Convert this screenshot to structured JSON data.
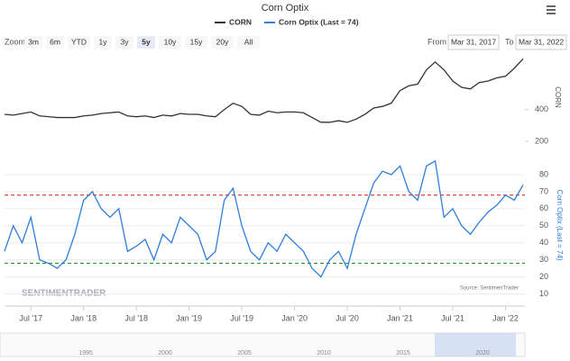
{
  "chart_data": {
    "type": "line",
    "title": "Corn Optix",
    "zoom_label": "Zoom",
    "zoom_buttons": [
      "3m",
      "6m",
      "YTD",
      "1y",
      "3y",
      "5y",
      "10y",
      "15y",
      "20y",
      "All"
    ],
    "zoom_selected": "5y",
    "from_label": "From",
    "from_date": "Mar 31, 2017",
    "to_label": "To",
    "to_date": "Mar 31, 2022",
    "source": "Source: SentimenTrader",
    "watermark": "SENTIMENTRADER",
    "categories": [
      null,
      null,
      null,
      "Jul '17",
      null,
      null,
      null,
      null,
      null,
      "Jan '18",
      null,
      null,
      null,
      null,
      null,
      "Jul '18",
      null,
      null,
      null,
      null,
      null,
      "Jan '19",
      null,
      null,
      null,
      null,
      null,
      "Jul '19",
      null,
      null,
      null,
      null,
      null,
      "Jan '20",
      null,
      null,
      null,
      null,
      null,
      "Jul '20",
      null,
      null,
      null,
      null,
      null,
      "Jan '21",
      null,
      null,
      null,
      null,
      null,
      "Jul '21",
      null,
      null,
      null,
      null,
      null,
      "Jan '22",
      null,
      null
    ],
    "series": [
      {
        "name": "CORN",
        "color": "#333333",
        "axis": "y",
        "values": [
          370,
          365,
          375,
          385,
          360,
          355,
          350,
          350,
          350,
          360,
          365,
          375,
          380,
          385,
          360,
          355,
          360,
          350,
          365,
          360,
          375,
          370,
          370,
          360,
          355,
          400,
          440,
          420,
          370,
          365,
          390,
          380,
          385,
          385,
          380,
          350,
          320,
          320,
          330,
          320,
          340,
          370,
          410,
          420,
          440,
          520,
          550,
          560,
          650,
          700,
          650,
          580,
          540,
          530,
          570,
          580,
          600,
          610,
          660,
          720
        ]
      },
      {
        "name": "Corn Optix (Last = 74)",
        "color": "#2f7ed8",
        "axis": "y2",
        "values": [
          35,
          50,
          40,
          55,
          30,
          28,
          25,
          30,
          45,
          65,
          70,
          60,
          55,
          60,
          35,
          38,
          42,
          30,
          45,
          40,
          55,
          50,
          45,
          30,
          35,
          65,
          72,
          50,
          35,
          30,
          40,
          35,
          45,
          40,
          35,
          25,
          20,
          30,
          35,
          25,
          45,
          60,
          75,
          82,
          80,
          85,
          70,
          65,
          85,
          88,
          55,
          60,
          50,
          45,
          52,
          58,
          62,
          68,
          65,
          74
        ]
      }
    ],
    "ylabel": "CORN",
    "ylim": [
      200,
      750
    ],
    "yticks": [
      200,
      400
    ],
    "y2label": "Corn Optix (Last = 74)",
    "y2lim": [
      5,
      90
    ],
    "y2ticks": [
      10,
      20,
      30,
      40,
      50,
      60,
      70,
      80
    ],
    "reference_lines": [
      {
        "value": 68,
        "color": "#e03030"
      },
      {
        "value": 28,
        "color": "#2a9a2a"
      }
    ],
    "navigator_labels": [
      "1995",
      "2000",
      "2005",
      "2010",
      "2015",
      "2020"
    ]
  }
}
